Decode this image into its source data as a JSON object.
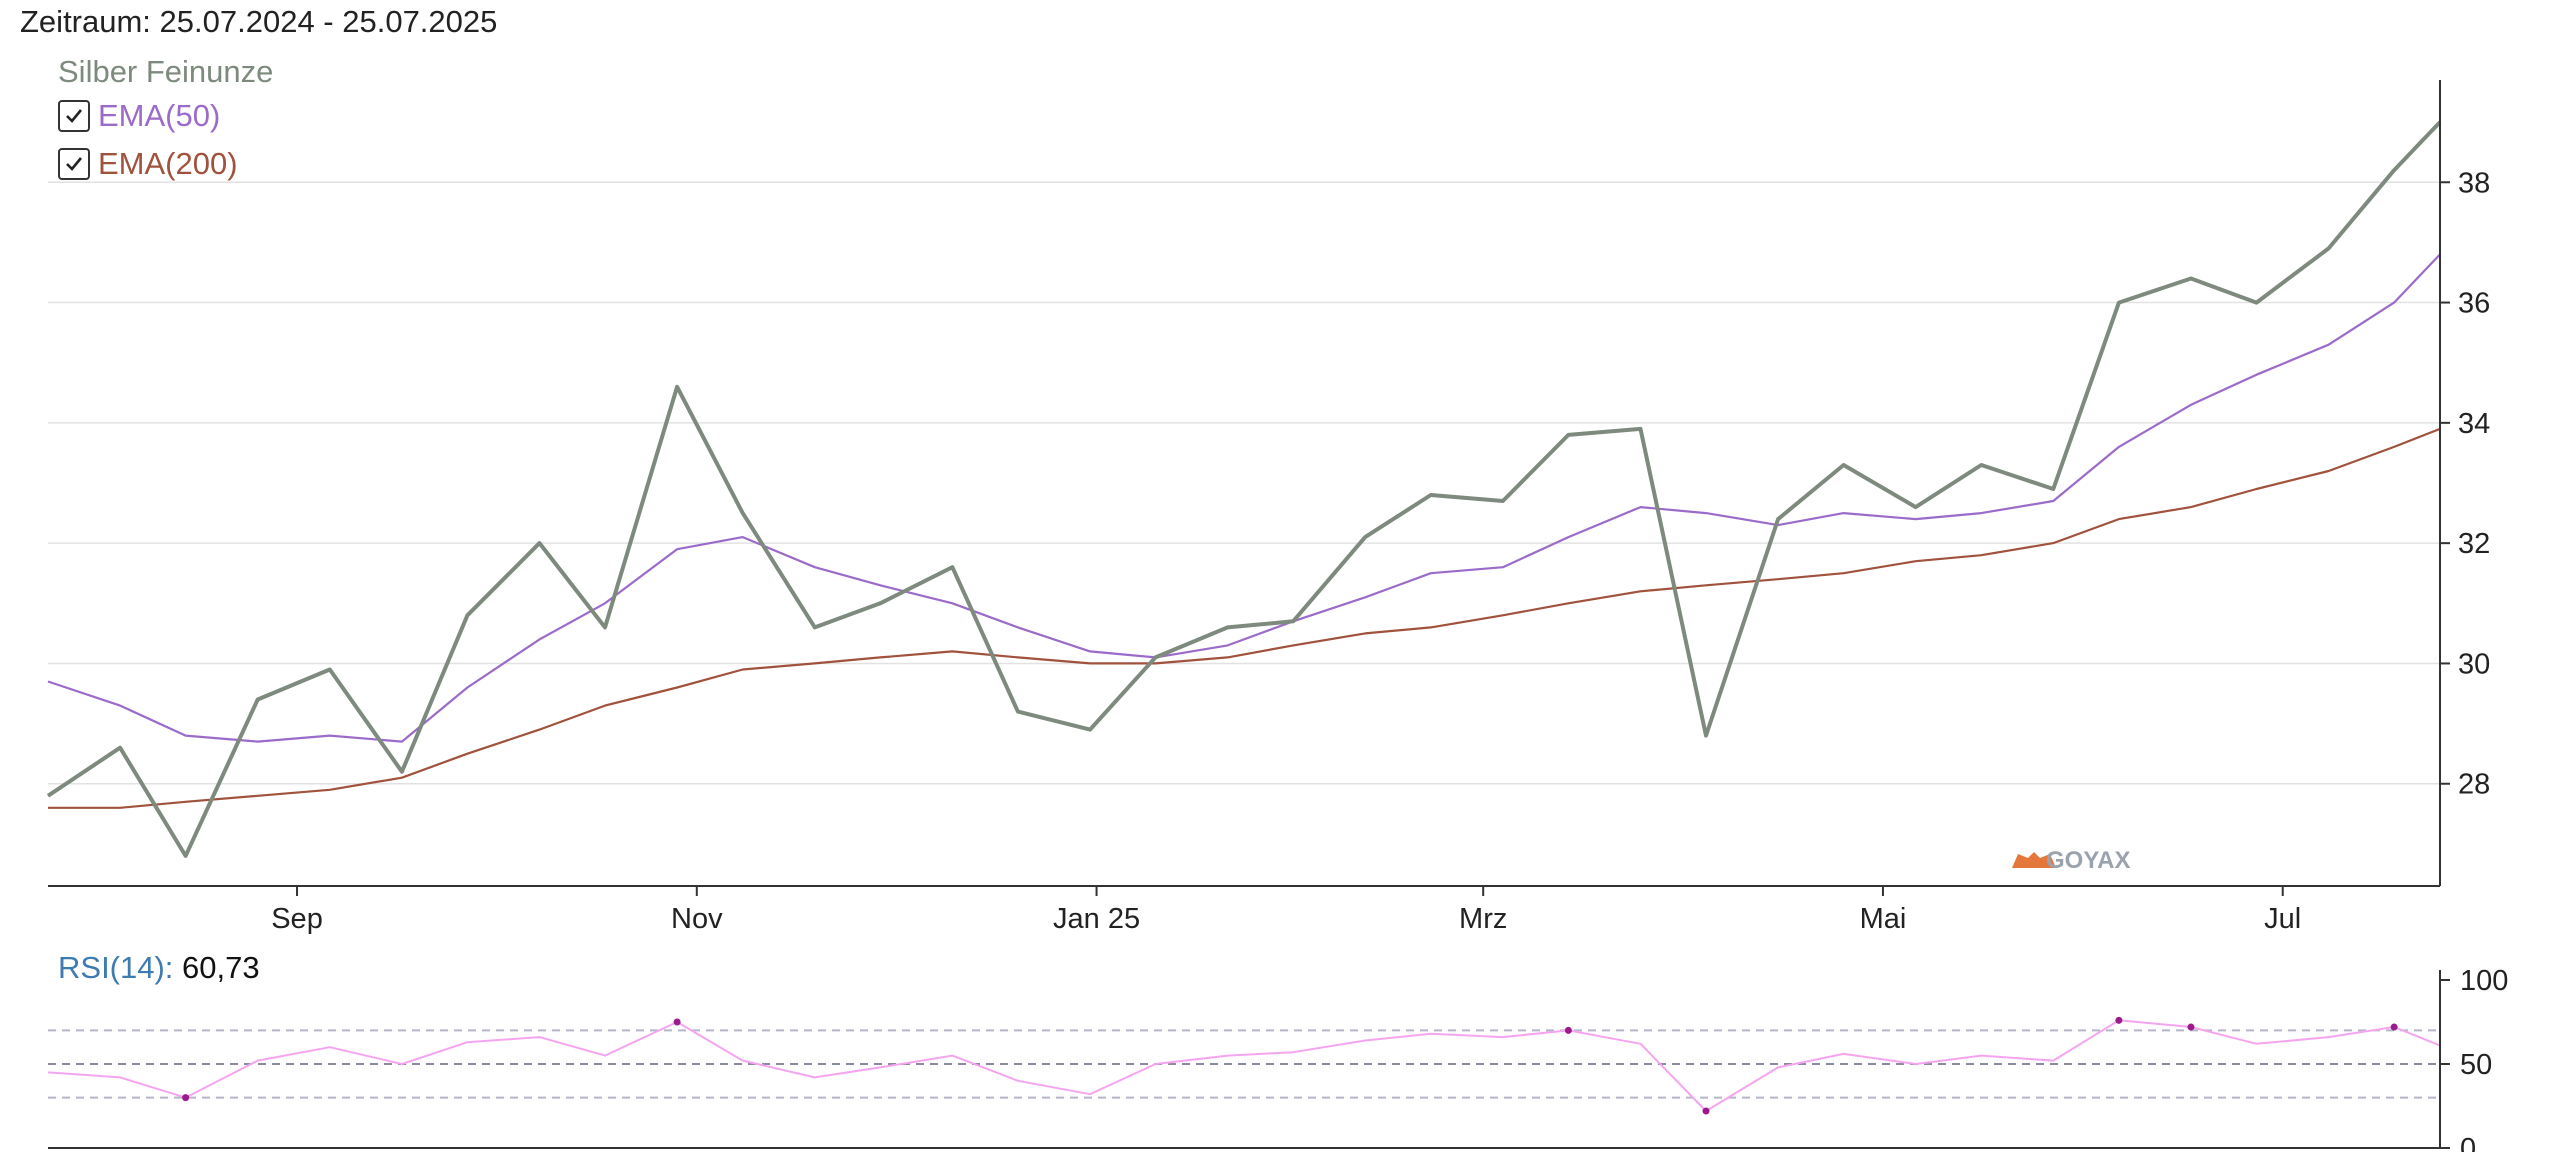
{
  "header": {
    "title": "Zeitraum: 25.07.2024 - 25.07.2025"
  },
  "logo": {
    "text": "GOYAX"
  },
  "colors": {
    "price": "#7d8a7d",
    "ema50": "#9b6bc9",
    "ema200": "#a0523d",
    "rsi": "#f5a5f0",
    "rsi_extreme": "#9b1a8c",
    "grid": "#e2e2e2",
    "rsi_band": "#b5b5c8",
    "rsi_mid": "#8a8aa0"
  },
  "legend": {
    "series_name": "Silber Feinunze",
    "items": [
      {
        "label": "EMA(50)",
        "checked": true,
        "color": "#9b6bc9"
      },
      {
        "label": "EMA(200)",
        "checked": true,
        "color": "#a0523d"
      }
    ]
  },
  "rsi_panel": {
    "name": "RSI(14):",
    "value": "60,73"
  },
  "chart_data": [
    {
      "type": "line",
      "x": [
        "2024-07-25",
        "2024-08-05",
        "2024-08-15",
        "2024-08-26",
        "2024-09-06",
        "2024-09-17",
        "2024-09-27",
        "2024-10-08",
        "2024-10-18",
        "2024-10-29",
        "2024-11-08",
        "2024-11-19",
        "2024-11-29",
        "2024-12-10",
        "2024-12-20",
        "2024-12-31",
        "2025-01-10",
        "2025-01-21",
        "2025-01-31",
        "2025-02-11",
        "2025-02-21",
        "2025-03-04",
        "2025-03-14",
        "2025-03-25",
        "2025-04-04",
        "2025-04-15",
        "2025-04-25",
        "2025-05-06",
        "2025-05-16",
        "2025-05-27",
        "2025-06-06",
        "2025-06-17",
        "2025-06-27",
        "2025-07-08",
        "2025-07-18",
        "2025-07-25"
      ],
      "series": [
        {
          "name": "Silber Feinunze",
          "values": [
            27.8,
            28.6,
            26.8,
            29.4,
            29.9,
            28.2,
            30.8,
            32.0,
            30.6,
            34.6,
            32.5,
            30.6,
            31.0,
            31.6,
            29.2,
            28.9,
            30.1,
            30.6,
            30.7,
            32.1,
            32.8,
            32.7,
            33.8,
            33.9,
            28.8,
            32.4,
            33.3,
            32.6,
            33.3,
            32.9,
            36.0,
            36.4,
            36.0,
            36.9,
            38.2,
            39.0
          ]
        },
        {
          "name": "EMA(50)",
          "values": [
            29.7,
            29.3,
            28.8,
            28.7,
            28.8,
            28.7,
            29.6,
            30.4,
            31.0,
            31.9,
            32.1,
            31.6,
            31.3,
            31.0,
            30.6,
            30.2,
            30.1,
            30.3,
            30.7,
            31.1,
            31.5,
            31.6,
            32.1,
            32.6,
            32.5,
            32.3,
            32.5,
            32.4,
            32.5,
            32.7,
            33.6,
            34.3,
            34.8,
            35.3,
            36.0,
            36.8
          ]
        },
        {
          "name": "EMA(200)",
          "values": [
            27.6,
            27.6,
            27.7,
            27.8,
            27.9,
            28.1,
            28.5,
            28.9,
            29.3,
            29.6,
            29.9,
            30.0,
            30.1,
            30.2,
            30.1,
            30.0,
            30.0,
            30.1,
            30.3,
            30.5,
            30.6,
            30.8,
            31.0,
            31.2,
            31.3,
            31.4,
            31.5,
            31.7,
            31.8,
            32.0,
            32.4,
            32.6,
            32.9,
            33.2,
            33.6,
            33.9
          ]
        }
      ],
      "ylim": [
        26.3,
        39.7
      ],
      "y_ticks": [
        "28",
        "30",
        "32",
        "34",
        "36",
        "38"
      ],
      "x_tick_labels": [
        "Sep",
        "Nov",
        "Jan 25",
        "Mrz",
        "Mai",
        "Jul"
      ],
      "grid": true
    },
    {
      "type": "line",
      "x": [
        "2024-07-25",
        "2024-08-05",
        "2024-08-15",
        "2024-08-26",
        "2024-09-06",
        "2024-09-17",
        "2024-09-27",
        "2024-10-08",
        "2024-10-18",
        "2024-10-29",
        "2024-11-08",
        "2024-11-19",
        "2024-11-29",
        "2024-12-10",
        "2024-12-20",
        "2024-12-31",
        "2025-01-10",
        "2025-01-21",
        "2025-01-31",
        "2025-02-11",
        "2025-02-21",
        "2025-03-04",
        "2025-03-14",
        "2025-03-25",
        "2025-04-04",
        "2025-04-15",
        "2025-04-25",
        "2025-05-06",
        "2025-05-16",
        "2025-05-27",
        "2025-06-06",
        "2025-06-17",
        "2025-06-27",
        "2025-07-08",
        "2025-07-18",
        "2025-07-25"
      ],
      "series": [
        {
          "name": "RSI(14)",
          "values": [
            45,
            42,
            30,
            52,
            60,
            50,
            63,
            66,
            55,
            75,
            52,
            42,
            48,
            55,
            40,
            32,
            50,
            55,
            57,
            64,
            68,
            66,
            70,
            62,
            22,
            48,
            56,
            50,
            55,
            52,
            76,
            72,
            62,
            66,
            72,
            61
          ]
        }
      ],
      "ylim": [
        0,
        100
      ],
      "y_ticks": [
        "0",
        "50",
        "100"
      ],
      "bands": [
        30,
        50,
        70
      ]
    }
  ]
}
